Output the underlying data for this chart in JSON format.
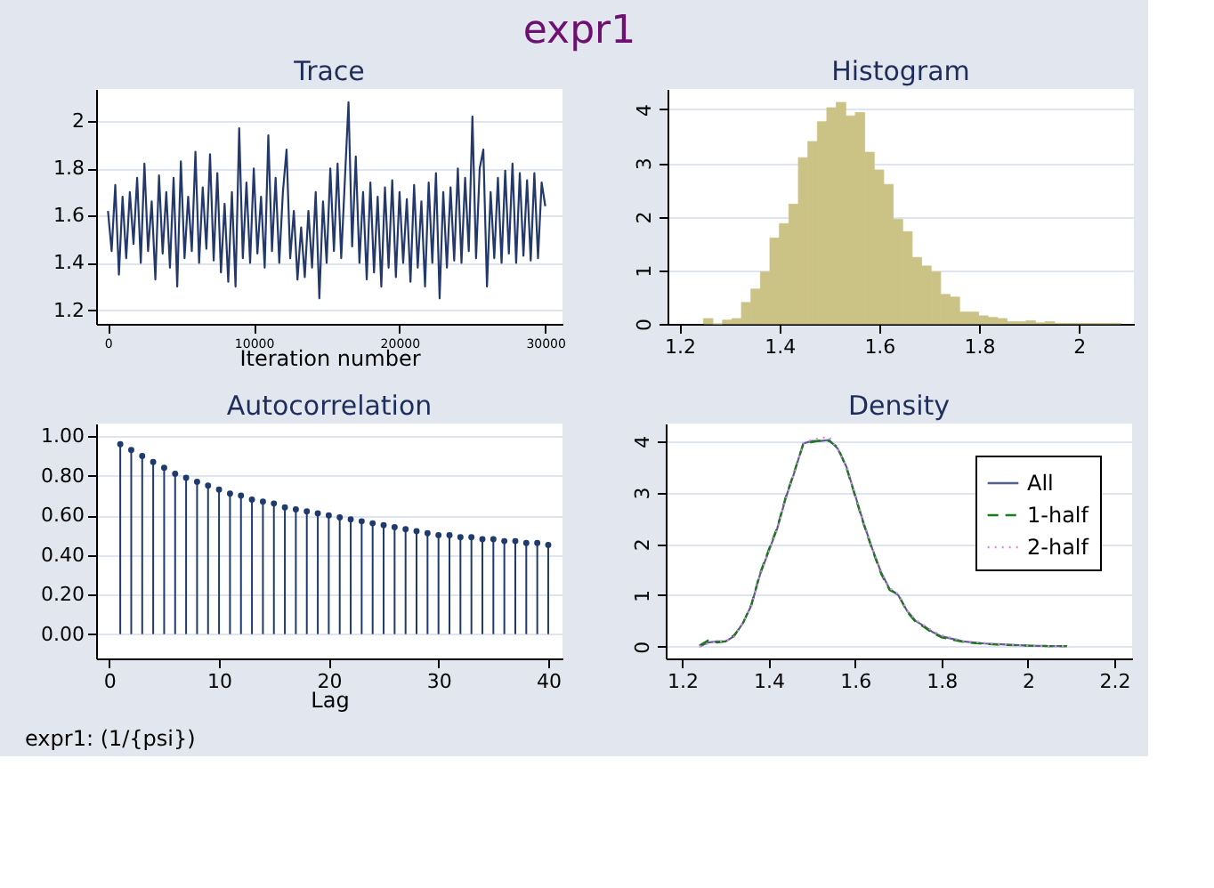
{
  "chart_data": [
    {
      "type": "other",
      "title": "expr1"
    },
    {
      "type": "line",
      "title": "Trace",
      "xlabel": "Iteration number",
      "xlim": [
        -814,
        31180
      ],
      "xticks": [
        0,
        10000,
        20000,
        30000
      ],
      "ylim": [
        1.142,
        2.136
      ],
      "yticks": [
        1.2,
        1.4,
        1.6,
        1.8,
        2
      ],
      "grid": "y",
      "x": [
        0,
        250,
        500,
        750,
        1000,
        1250,
        1500,
        1750,
        2000,
        2250,
        2500,
        2750,
        3000,
        3250,
        3500,
        3750,
        4000,
        4250,
        4500,
        4750,
        5000,
        5250,
        5500,
        5750,
        6000,
        6250,
        6500,
        6750,
        7000,
        7250,
        7500,
        7750,
        8000,
        8250,
        8500,
        8750,
        9000,
        9250,
        9500,
        9750,
        10000,
        10250,
        10500,
        10750,
        11000,
        11250,
        11500,
        11750,
        12000,
        12250,
        12500,
        12750,
        13000,
        13250,
        13500,
        13750,
        14000,
        14250,
        14500,
        14750,
        15000,
        15250,
        15500,
        15750,
        16000,
        16250,
        16500,
        16750,
        17000,
        17250,
        17500,
        17750,
        18000,
        18250,
        18500,
        18750,
        19000,
        19250,
        19500,
        19750,
        20000,
        20250,
        20500,
        20750,
        21000,
        21250,
        21500,
        21750,
        22000,
        22250,
        22500,
        22750,
        23000,
        23250,
        23500,
        23750,
        24000,
        24250,
        24500,
        24750,
        25000,
        25250,
        25500,
        25750,
        26000,
        26250,
        26500,
        26750,
        27000,
        27250,
        27500,
        27750,
        28000,
        28250,
        28500,
        28750,
        29000,
        29250,
        29500,
        29750,
        30000
      ],
      "series": [
        {
          "color": "#24396b",
          "values": [
            1.62,
            1.45,
            1.73,
            1.35,
            1.68,
            1.42,
            1.7,
            1.48,
            1.76,
            1.4,
            1.82,
            1.45,
            1.66,
            1.33,
            1.77,
            1.44,
            1.7,
            1.38,
            1.76,
            1.3,
            1.83,
            1.42,
            1.68,
            1.45,
            1.87,
            1.4,
            1.72,
            1.46,
            1.86,
            1.41,
            1.78,
            1.36,
            1.65,
            1.32,
            1.7,
            1.3,
            1.97,
            1.42,
            1.74,
            1.4,
            1.8,
            1.44,
            1.68,
            1.38,
            1.94,
            1.45,
            1.76,
            1.4,
            1.7,
            1.88,
            1.42,
            1.62,
            1.33,
            1.55,
            1.34,
            1.62,
            1.38,
            1.7,
            1.25,
            1.66,
            1.4,
            1.8,
            1.45,
            1.82,
            1.42,
            1.75,
            2.08,
            1.47,
            1.85,
            1.4,
            1.7,
            1.33,
            1.74,
            1.36,
            1.68,
            1.3,
            1.72,
            1.38,
            1.75,
            1.34,
            1.7,
            1.4,
            1.67,
            1.32,
            1.73,
            1.38,
            1.66,
            1.3,
            1.74,
            1.4,
            1.78,
            1.25,
            1.7,
            1.38,
            1.72,
            1.41,
            1.8,
            1.4,
            1.76,
            1.45,
            2.02,
            1.42,
            1.8,
            1.88,
            1.3,
            1.7,
            1.42,
            1.76,
            1.4,
            1.79,
            1.44,
            1.82,
            1.4,
            1.78,
            1.43,
            1.75,
            1.41,
            1.78,
            1.42,
            1.74,
            1.64
          ]
        }
      ]
    },
    {
      "type": "histogram",
      "title": "Histogram",
      "xlim": [
        1.176,
        2.11
      ],
      "xticks": [
        1.2,
        1.4,
        1.6,
        1.8,
        2
      ],
      "ylim": [
        0,
        4.38
      ],
      "yticks": [
        0,
        1,
        2,
        3,
        4
      ],
      "grid": "y",
      "color": "#cbc385",
      "bins": [
        1.248,
        1.267,
        1.286,
        1.305,
        1.324,
        1.343,
        1.362,
        1.381,
        1.4,
        1.419,
        1.438,
        1.457,
        1.476,
        1.495,
        1.514,
        1.533,
        1.552,
        1.571,
        1.59,
        1.609,
        1.628,
        1.647,
        1.666,
        1.685,
        1.704,
        1.723,
        1.742,
        1.761,
        1.78,
        1.799,
        1.818,
        1.837,
        1.856,
        1.875,
        1.894,
        1.913,
        1.932,
        1.951,
        1.97,
        1.989,
        2.008,
        2.027,
        2.046,
        2.065,
        2.084
      ],
      "values": [
        0.1,
        0,
        0.07,
        0.1,
        0.4,
        0.65,
        0.97,
        1.6,
        1.87,
        2.23,
        3.1,
        3.4,
        3.77,
        4.03,
        4.13,
        3.88,
        3.94,
        3.2,
        2.87,
        2.6,
        1.95,
        1.72,
        1.24,
        1.08,
        0.97,
        0.55,
        0.5,
        0.22,
        0.22,
        0.15,
        0.12,
        0.1,
        0.04,
        0.04,
        0.06,
        0.02,
        0.04,
        0.01,
        0.01,
        0.01,
        0.01,
        0.01,
        0.01,
        0.01
      ]
    },
    {
      "type": "lollipop",
      "title": "Autocorrelation",
      "xlabel": "Lag",
      "xlim": [
        -1.2,
        41.3
      ],
      "xticks": [
        0,
        10,
        20,
        30,
        40
      ],
      "ylim": [
        -0.123,
        1.064
      ],
      "yticks": [
        {
          "value": 0,
          "label": "0.00"
        },
        {
          "value": 0.2,
          "label": "0.20"
        },
        {
          "value": 0.4,
          "label": "0.40"
        },
        {
          "value": 0.6,
          "label": "0.60"
        },
        {
          "value": 0.8,
          "label": "0.80"
        },
        {
          "value": 1,
          "label": "1.00"
        }
      ],
      "grid": "y",
      "marker": "circle",
      "color": "#1f3a6e",
      "x": [
        1,
        2,
        3,
        4,
        5,
        6,
        7,
        8,
        9,
        10,
        11,
        12,
        13,
        14,
        15,
        16,
        17,
        18,
        19,
        20,
        21,
        22,
        23,
        24,
        25,
        26,
        27,
        28,
        29,
        30,
        31,
        32,
        33,
        34,
        35,
        36,
        37,
        38,
        39,
        40
      ],
      "values": [
        0.96,
        0.93,
        0.9,
        0.87,
        0.84,
        0.81,
        0.79,
        0.77,
        0.75,
        0.73,
        0.71,
        0.7,
        0.68,
        0.67,
        0.66,
        0.64,
        0.63,
        0.62,
        0.61,
        0.6,
        0.59,
        0.58,
        0.57,
        0.56,
        0.55,
        0.54,
        0.53,
        0.52,
        0.51,
        0.5,
        0.5,
        0.49,
        0.49,
        0.48,
        0.48,
        0.47,
        0.47,
        0.46,
        0.46,
        0.45
      ],
      "annotations": [
        "expr1:  (1/{psi})"
      ]
    },
    {
      "type": "line",
      "title": "Density",
      "xlim": [
        1.162,
        2.241
      ],
      "xticks": [
        1.2,
        1.4,
        1.6,
        1.8,
        2,
        2.2
      ],
      "ylim": [
        -0.23,
        4.34
      ],
      "yticks": [
        0,
        1,
        2,
        3,
        4
      ],
      "grid": "y",
      "legend": "top right",
      "x": [
        1.24,
        1.26,
        1.28,
        1.3,
        1.32,
        1.34,
        1.36,
        1.38,
        1.4,
        1.42,
        1.44,
        1.46,
        1.48,
        1.5,
        1.52,
        1.54,
        1.56,
        1.58,
        1.6,
        1.62,
        1.64,
        1.66,
        1.68,
        1.7,
        1.72,
        1.74,
        1.76,
        1.78,
        1.8,
        1.85,
        1.9,
        1.95,
        2,
        2.05,
        2.09
      ],
      "series": [
        {
          "name": "All",
          "color": "#55608f",
          "line_style": "solid",
          "values": [
            0,
            0.08,
            0.1,
            0.1,
            0.2,
            0.45,
            0.8,
            1.4,
            1.85,
            2.3,
            2.9,
            3.4,
            3.95,
            4,
            4,
            4.02,
            3.85,
            3.5,
            2.95,
            2.4,
            1.9,
            1.45,
            1.12,
            1,
            0.7,
            0.5,
            0.4,
            0.28,
            0.2,
            0.1,
            0.06,
            0.04,
            0.02,
            0.01,
            0.01
          ]
        },
        {
          "name": "1-half",
          "color": "#1a7a1a",
          "line_style": "dashed",
          "values": [
            0.02,
            0.12,
            0.08,
            0.1,
            0.22,
            0.44,
            0.82,
            1.42,
            1.88,
            2.32,
            2.92,
            3.42,
            3.93,
            3.98,
            4.01,
            4,
            3.88,
            3.48,
            2.93,
            2.38,
            1.88,
            1.42,
            1.1,
            1.02,
            0.68,
            0.48,
            0.38,
            0.26,
            0.18,
            0.09,
            0.05,
            0.03,
            0.02,
            0.01,
            0.01
          ]
        },
        {
          "name": "2-half",
          "color": "#e08ae0",
          "line_style": "dotted",
          "values": [
            0,
            0.06,
            0.1,
            0.11,
            0.19,
            0.46,
            0.79,
            1.39,
            1.83,
            2.29,
            2.88,
            3.39,
            3.96,
            4.02,
            4.06,
            4.08,
            3.83,
            3.52,
            2.97,
            2.42,
            1.92,
            1.47,
            1.14,
            1.02,
            0.71,
            0.52,
            0.41,
            0.3,
            0.22,
            0.11,
            0.07,
            0.04,
            0.02,
            0.01,
            0.01
          ]
        }
      ]
    }
  ]
}
